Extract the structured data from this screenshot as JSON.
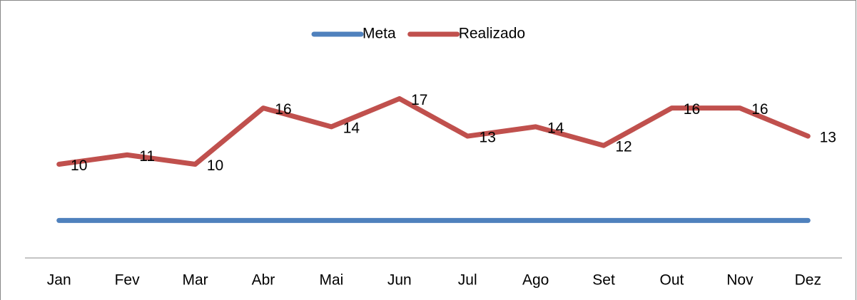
{
  "chart_data": {
    "type": "line",
    "categories": [
      "Jan",
      "Fev",
      "Mar",
      "Abr",
      "Mai",
      "Jun",
      "Jul",
      "Ago",
      "Set",
      "Out",
      "Nov",
      "Dez"
    ],
    "series": [
      {
        "name": "Meta",
        "color": "#4f81bd",
        "values": [
          4,
          4,
          4,
          4,
          4,
          4,
          4,
          4,
          4,
          4,
          4,
          4
        ]
      },
      {
        "name": "Realizado",
        "color": "#c0504d",
        "values": [
          10,
          11,
          10,
          16,
          14,
          17,
          13,
          14,
          12,
          16,
          16,
          13
        ],
        "data_labels": true
      }
    ],
    "ylim": [
      0,
      20
    ],
    "legend": "top"
  }
}
